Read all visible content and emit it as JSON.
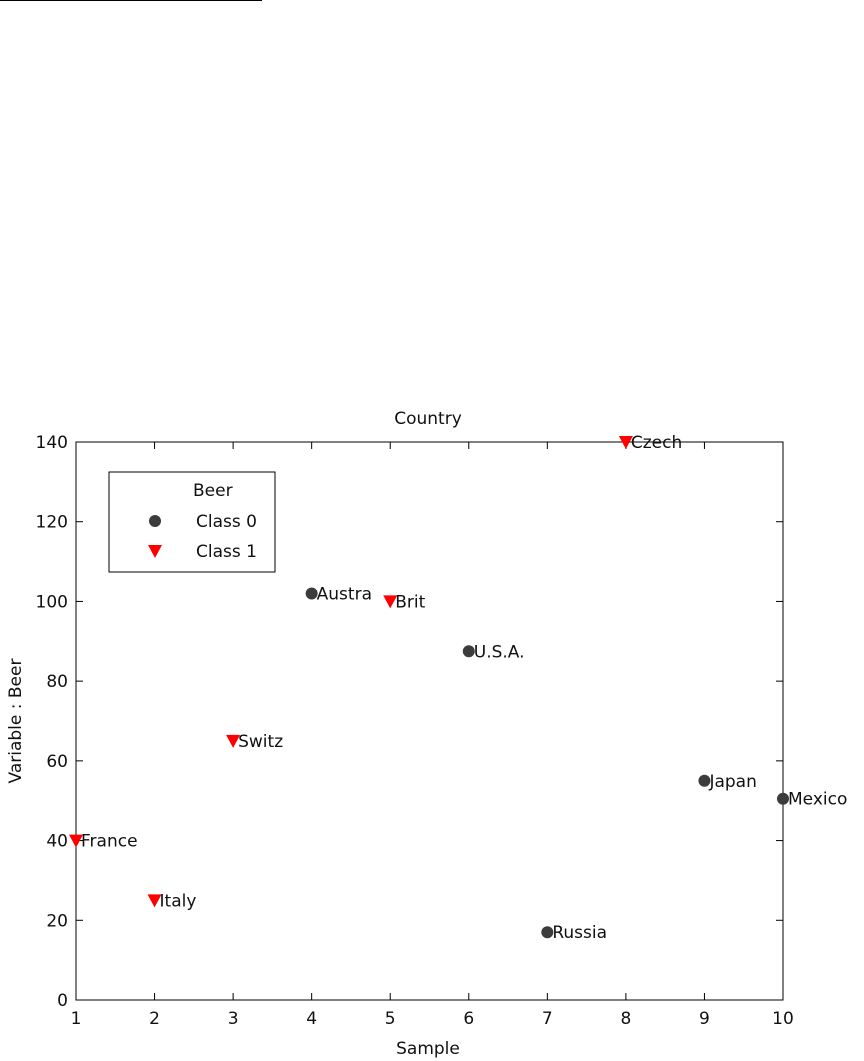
{
  "colors": {
    "class0": "#3c3c3c",
    "class1": "#ff0000",
    "axis": "#000000",
    "background": "#ffffff"
  },
  "chart_data": {
    "type": "scatter",
    "title": "Country",
    "xlabel": "Sample",
    "ylabel": "Variable : Beer",
    "xlim": [
      1,
      10
    ],
    "ylim": [
      0,
      140
    ],
    "xticks": [
      1,
      2,
      3,
      4,
      5,
      6,
      7,
      8,
      9,
      10
    ],
    "yticks": [
      0,
      20,
      40,
      60,
      80,
      100,
      120,
      140
    ],
    "grid": false,
    "legend": {
      "title": "Beer",
      "placement": "top-left",
      "entries": [
        {
          "label": "Class 0",
          "marker": "circle"
        },
        {
          "label": "Class 1",
          "marker": "triangle-down"
        }
      ]
    },
    "series": [
      {
        "name": "Class 0",
        "marker": "circle",
        "points": [
          {
            "x": 4,
            "y": 102,
            "label": "Austra"
          },
          {
            "x": 6,
            "y": 87.5,
            "label": "U.S.A."
          },
          {
            "x": 7,
            "y": 17,
            "label": "Russia"
          },
          {
            "x": 9,
            "y": 55,
            "label": "Japan"
          },
          {
            "x": 10,
            "y": 50.5,
            "label": "Mexico"
          }
        ]
      },
      {
        "name": "Class 1",
        "marker": "triangle-down",
        "points": [
          {
            "x": 1,
            "y": 40,
            "label": "France"
          },
          {
            "x": 2,
            "y": 25,
            "label": "Italy"
          },
          {
            "x": 3,
            "y": 65,
            "label": "Switz"
          },
          {
            "x": 5,
            "y": 100,
            "label": "Brit"
          },
          {
            "x": 8,
            "y": 140,
            "label": "Czech"
          }
        ]
      }
    ]
  }
}
